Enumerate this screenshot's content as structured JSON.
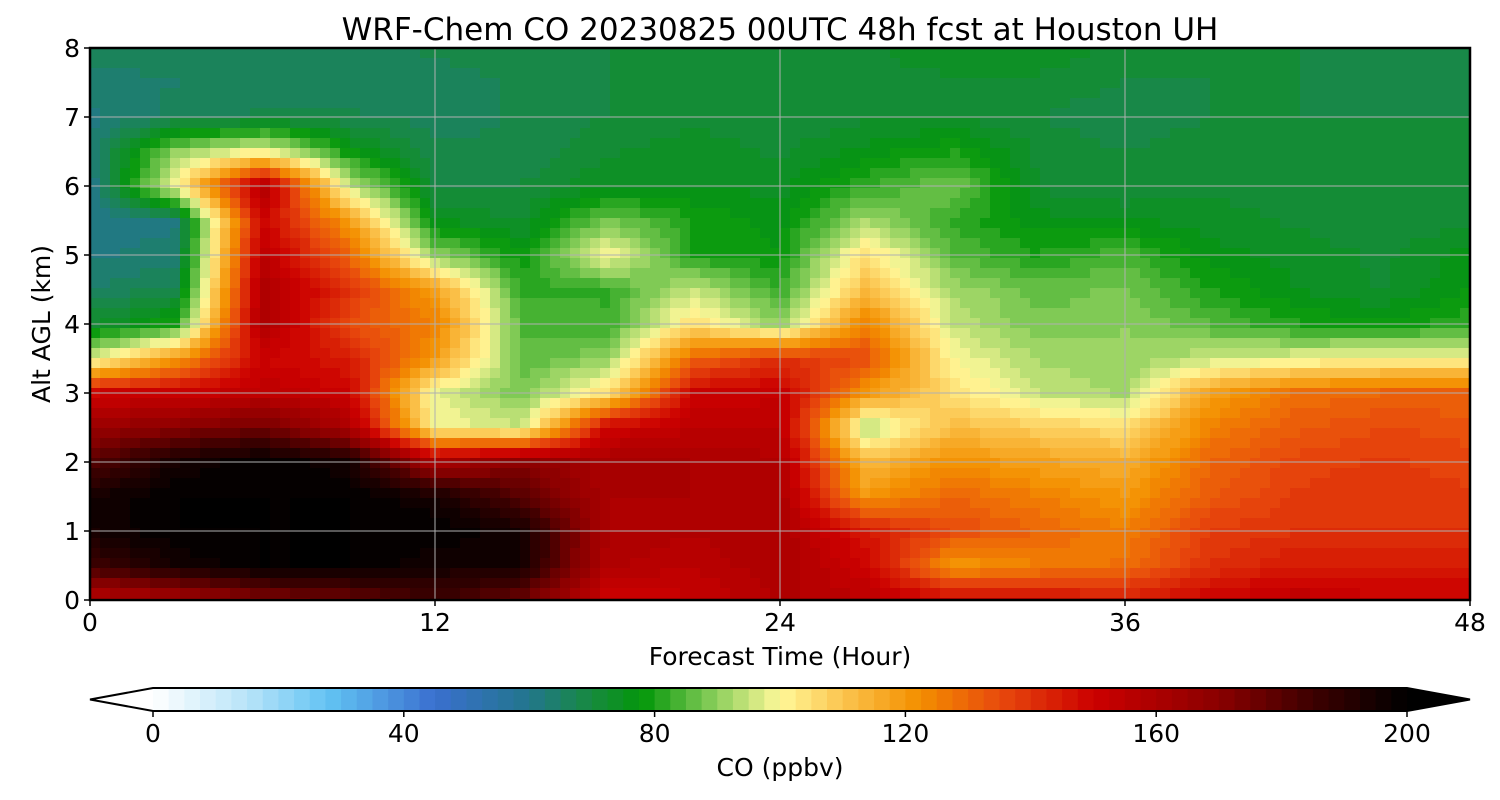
{
  "chart_data": {
    "type": "heatmap",
    "title": "WRF-Chem CO  20230825 00UTC 48h fcst at Houston UH",
    "xlabel": "Forecast Time (Hour)",
    "ylabel": "Alt AGL (km)",
    "xlim": [
      0,
      48
    ],
    "ylim": [
      0,
      8
    ],
    "x_ticks": [
      "0",
      "12",
      "24",
      "36",
      "48"
    ],
    "y_ticks": [
      "0",
      "1",
      "2",
      "3",
      "4",
      "5",
      "6",
      "7",
      "8"
    ],
    "grid": true,
    "x_hours": [
      0,
      3,
      6,
      9,
      12,
      15,
      18,
      21,
      24,
      27,
      30,
      33,
      36,
      39,
      42,
      45,
      48
    ],
    "z_km": [
      0,
      0.5,
      1,
      1.5,
      2,
      2.5,
      3,
      3.5,
      4,
      4.5,
      5,
      5.5,
      6,
      6.5,
      7,
      7.5,
      8
    ],
    "co_ppbv": [
      [
        155,
        160,
        170,
        175,
        185,
        175,
        150,
        152,
        158,
        155,
        150,
        148,
        145,
        150,
        155,
        150,
        150
      ],
      [
        185,
        195,
        200,
        200,
        195,
        195,
        158,
        155,
        160,
        150,
        120,
        125,
        128,
        140,
        145,
        145,
        145
      ],
      [
        195,
        200,
        200,
        200,
        200,
        195,
        160,
        158,
        160,
        145,
        135,
        130,
        125,
        138,
        140,
        140,
        140
      ],
      [
        195,
        200,
        200,
        200,
        195,
        180,
        160,
        160,
        160,
        120,
        130,
        125,
        120,
        132,
        138,
        140,
        138
      ],
      [
        180,
        195,
        200,
        195,
        160,
        170,
        160,
        160,
        158,
        112,
        122,
        118,
        115,
        130,
        136,
        138,
        136
      ],
      [
        165,
        170,
        175,
        160,
        100,
        95,
        150,
        155,
        155,
        92,
        112,
        108,
        105,
        125,
        132,
        135,
        134
      ],
      [
        150,
        150,
        155,
        150,
        98,
        88,
        105,
        150,
        152,
        120,
        105,
        95,
        92,
        118,
        128,
        130,
        130
      ],
      [
        95,
        120,
        150,
        145,
        120,
        85,
        90,
        130,
        140,
        135,
        100,
        92,
        90,
        95,
        98,
        100,
        100
      ],
      [
        72,
        80,
        160,
        135,
        125,
        85,
        83,
        105,
        90,
        125,
        95,
        88,
        90,
        85,
        80,
        78,
        82
      ],
      [
        65,
        68,
        160,
        140,
        118,
        82,
        82,
        95,
        82,
        112,
        92,
        86,
        88,
        80,
        75,
        72,
        78
      ],
      [
        62,
        64,
        155,
        130,
        90,
        78,
        100,
        80,
        78,
        105,
        85,
        80,
        84,
        76,
        74,
        72,
        76
      ],
      [
        60,
        62,
        150,
        120,
        75,
        72,
        88,
        80,
        76,
        92,
        82,
        76,
        75,
        74,
        72,
        70,
        72
      ],
      [
        60,
        100,
        160,
        95,
        70,
        70,
        75,
        75,
        74,
        82,
        88,
        72,
        70,
        72,
        70,
        70,
        70
      ],
      [
        62,
        90,
        100,
        78,
        68,
        68,
        72,
        74,
        72,
        76,
        80,
        72,
        70,
        72,
        70,
        70,
        70
      ],
      [
        62,
        66,
        68,
        68,
        66,
        68,
        70,
        72,
        70,
        72,
        72,
        70,
        68,
        70,
        70,
        70,
        70
      ],
      [
        64,
        65,
        66,
        66,
        66,
        68,
        70,
        70,
        70,
        72,
        72,
        72,
        70,
        70,
        70,
        68,
        70
      ],
      [
        66,
        66,
        66,
        66,
        68,
        70,
        70,
        70,
        70,
        72,
        74,
        74,
        72,
        72,
        70,
        70,
        70
      ]
    ],
    "colorbar": {
      "label": "CO  (ppbv)",
      "min": 0,
      "max": 200,
      "ticks": [
        "0",
        "40",
        "80",
        "120",
        "160",
        "200"
      ],
      "extend": "both",
      "levels": 80,
      "color_stops": [
        {
          "v": 0,
          "c": "#ffffff"
        },
        {
          "v": 15,
          "c": "#b8e4f8"
        },
        {
          "v": 28,
          "c": "#62c3f3"
        },
        {
          "v": 45,
          "c": "#3a6fcf"
        },
        {
          "v": 60,
          "c": "#22768c"
        },
        {
          "v": 70,
          "c": "#178a3e"
        },
        {
          "v": 78,
          "c": "#03970a"
        },
        {
          "v": 90,
          "c": "#8fd05e"
        },
        {
          "v": 100,
          "c": "#fff899"
        },
        {
          "v": 110,
          "c": "#fbc44f"
        },
        {
          "v": 122,
          "c": "#f49000"
        },
        {
          "v": 135,
          "c": "#e84a0d"
        },
        {
          "v": 150,
          "c": "#cc0000"
        },
        {
          "v": 170,
          "c": "#8a0000"
        },
        {
          "v": 185,
          "c": "#3d0000"
        },
        {
          "v": 200,
          "c": "#000000"
        }
      ]
    }
  }
}
